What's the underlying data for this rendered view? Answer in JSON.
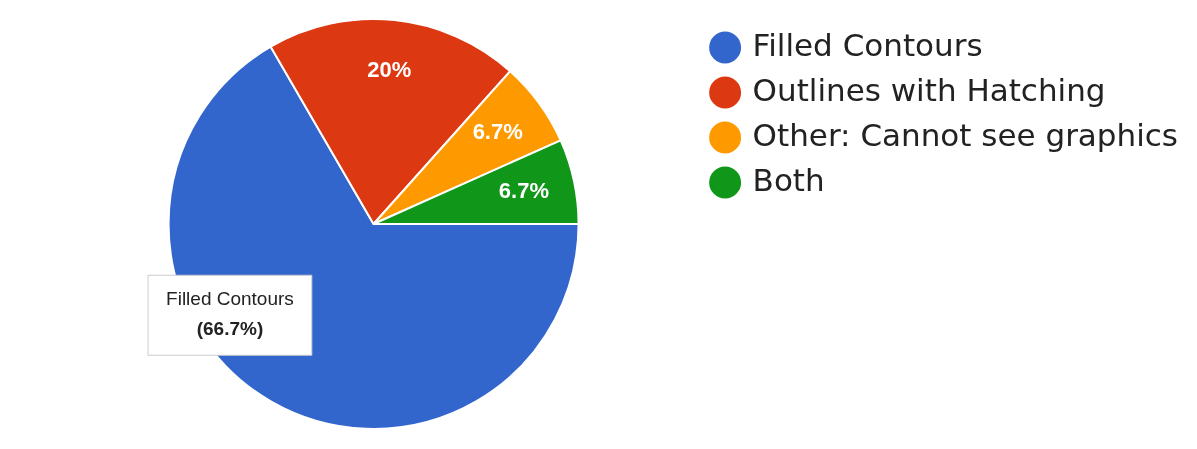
{
  "chart_data": {
    "type": "pie",
    "categories": [
      "Filled Contours",
      "Outlines with Hatching",
      "Other: Cannot see graphics",
      "Both"
    ],
    "values": [
      66.7,
      20,
      6.7,
      6.7
    ],
    "colors": [
      "#3366cc",
      "#dc3912",
      "#ff9900",
      "#109618"
    ],
    "value_labels": [
      null,
      "20%",
      "6.7%",
      "6.7%"
    ],
    "annotations": [
      "Filled Contours\n(66.7%)"
    ],
    "legend": "right"
  }
}
